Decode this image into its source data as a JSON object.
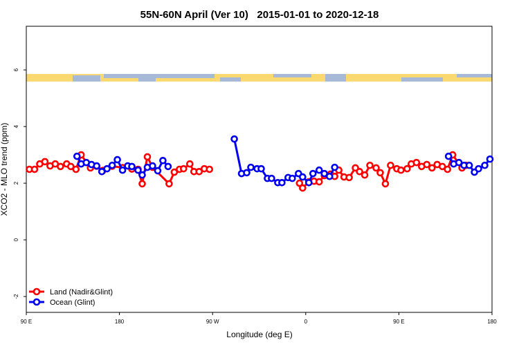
{
  "chart_data": {
    "type": "line",
    "title": "55N-60N April (Ver 10)   2015-01-01 to 2020-12-18",
    "x_label": "Longitude (deg E)",
    "y_label": "XCO2 - MLO trend (ppm)",
    "xlim": [
      90,
      540
    ],
    "ylim": [
      -2.56,
      7.54
    ],
    "xticks": [
      {
        "value": 90,
        "label": "90 E"
      },
      {
        "value": 180,
        "label": "180"
      },
      {
        "value": 270,
        "label": "90 W"
      },
      {
        "value": 360,
        "label": "0"
      },
      {
        "value": 450,
        "label": "90 E"
      },
      {
        "value": 540,
        "label": "180"
      }
    ],
    "yticks": [
      -2,
      0,
      2,
      4,
      6
    ],
    "legend": "bottom-left",
    "series": [
      {
        "name": "Land (Nadir&Glint)",
        "color": "#ff0000",
        "x": [
          93,
          98,
          103,
          108,
          113,
          118,
          123,
          129,
          133,
          138,
          143,
          152,
          158,
          164,
          173,
          183,
          192,
          198,
          202,
          207,
          212,
          228,
          233,
          238,
          242,
          248,
          252,
          257,
          262,
          267,
          310,
          354,
          357,
          363,
          368,
          373,
          378,
          384,
          388,
          392,
          397,
          402,
          408,
          412,
          417,
          422,
          428,
          432,
          437,
          442,
          448,
          452,
          458,
          462,
          467,
          472,
          477,
          482,
          487,
          492,
          497,
          502,
          511,
          515
        ],
        "values": [
          2.49,
          2.49,
          2.68,
          2.76,
          2.61,
          2.68,
          2.59,
          2.68,
          2.59,
          2.49,
          3.0,
          2.54,
          2.6,
          2.45,
          2.6,
          2.55,
          2.5,
          2.49,
          1.98,
          2.93,
          2.56,
          1.98,
          2.39,
          2.49,
          2.51,
          2.68,
          2.41,
          2.41,
          2.51,
          2.49,
          null,
          2.0,
          1.83,
          2.05,
          2.07,
          2.05,
          2.27,
          2.32,
          2.24,
          2.46,
          2.22,
          2.2,
          2.54,
          2.41,
          2.29,
          2.63,
          2.54,
          2.37,
          1.98,
          2.63,
          2.51,
          2.46,
          2.51,
          2.68,
          2.73,
          2.59,
          2.66,
          2.54,
          2.66,
          2.59,
          2.49,
          3.0,
          2.54,
          2.63
        ]
      },
      {
        "name": "Ocean (Glint)",
        "color": "#0000ee",
        "x": [
          139,
          143,
          148,
          153,
          158,
          163,
          168,
          173,
          178,
          183,
          188,
          192,
          198,
          202,
          207,
          212,
          217,
          222,
          227,
          259,
          291,
          298,
          303,
          307,
          313,
          317,
          323,
          327,
          333,
          337,
          343,
          347,
          353,
          357,
          363,
          367,
          373,
          378,
          383,
          388,
          443,
          498,
          503,
          508,
          513,
          518,
          523,
          527,
          533,
          538
        ],
        "values": [
          2.95,
          2.68,
          2.73,
          2.66,
          2.61,
          2.41,
          2.51,
          2.63,
          2.83,
          2.46,
          2.61,
          2.59,
          2.46,
          2.29,
          2.56,
          2.61,
          2.44,
          2.8,
          2.59,
          null,
          3.56,
          2.34,
          2.37,
          2.56,
          2.51,
          2.51,
          2.17,
          2.17,
          2.02,
          2.02,
          2.2,
          2.17,
          2.34,
          2.22,
          2.02,
          2.34,
          2.46,
          2.34,
          2.24,
          2.56,
          null,
          2.95,
          2.68,
          2.73,
          2.63,
          2.63,
          2.39,
          2.51,
          2.63,
          2.85
        ]
      }
    ]
  }
}
